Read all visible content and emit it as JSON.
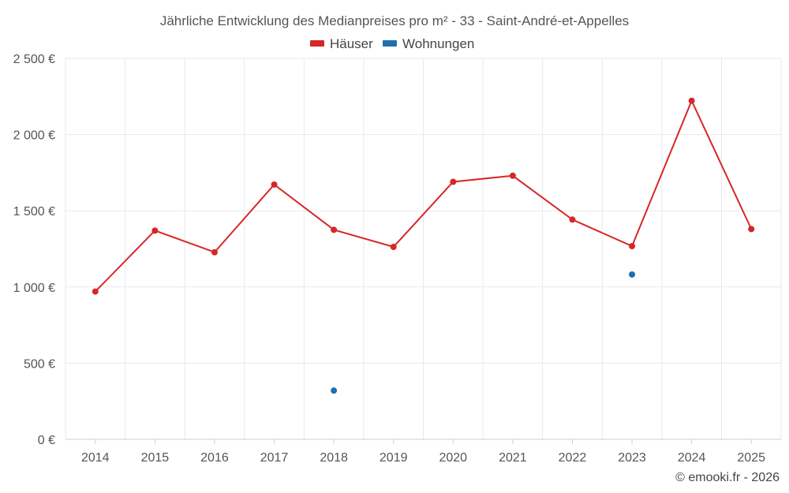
{
  "chart_data": {
    "type": "line",
    "title": "Jährliche Entwicklung des Medianpreises pro m² - 33 - Saint-André-et-Appelles",
    "categories": [
      "2014",
      "2015",
      "2016",
      "2017",
      "2018",
      "2019",
      "2020",
      "2021",
      "2022",
      "2023",
      "2024",
      "2025"
    ],
    "ylim": [
      0,
      2500
    ],
    "yticks": [
      0,
      500,
      1000,
      1500,
      2000,
      2500
    ],
    "ytick_labels": [
      "0 €",
      "500 €",
      "1 000 €",
      "1 500 €",
      "2 000 €",
      "2 500 €"
    ],
    "grid": true,
    "legend_position": "top-center",
    "series": [
      {
        "name": "Häuser",
        "color": "#d62728",
        "line": true,
        "values": [
          970,
          1370,
          1228,
          1672,
          1375,
          1263,
          1690,
          1730,
          1442,
          1268,
          2222,
          1380
        ]
      },
      {
        "name": "Wohnungen",
        "color": "#1f6fb0",
        "line": false,
        "values": [
          null,
          null,
          null,
          null,
          320,
          null,
          null,
          null,
          null,
          1082,
          null,
          null
        ]
      }
    ]
  },
  "credit": "© emooki.fr - 2026"
}
